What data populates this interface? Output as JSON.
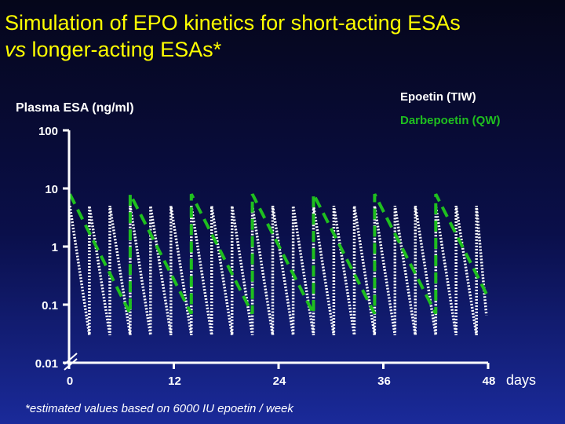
{
  "title": {
    "line1": "Simulation of EPO kinetics for short-acting ESAs",
    "line2_italic": "vs",
    "line2_rest": " longer-acting ESAs*"
  },
  "footnote": "*estimated values based on 6000 IU epoetin / week",
  "colors": {
    "epoetin": "#ffffff",
    "darbepoetin": "#1fbf1f",
    "title": "#ffff00",
    "axis": "#ffffff"
  },
  "chart_data": {
    "type": "line",
    "ylabel": "Plasma ESA (ng/ml)",
    "xlabel": "days",
    "yscale": "log",
    "ylim": [
      0.01,
      100
    ],
    "xlim": [
      0,
      48
    ],
    "y_ticks": [
      {
        "value": 100,
        "label": "100"
      },
      {
        "value": 10,
        "label": "10"
      },
      {
        "value": 1,
        "label": "1"
      },
      {
        "value": 0.1,
        "label": "0.1"
      },
      {
        "value": 0.01,
        "label": "0.01"
      }
    ],
    "x_ticks": [
      {
        "value": 0,
        "label": "0"
      },
      {
        "value": 12,
        "label": "12"
      },
      {
        "value": 24,
        "label": "24"
      },
      {
        "value": 36,
        "label": "36"
      },
      {
        "value": 48,
        "label": "48"
      }
    ],
    "legend_position": "top-right",
    "series": [
      {
        "name": "Epoetin (TIW)",
        "style": "dotted",
        "peak": 5,
        "trough": 0.03,
        "dose_days": [
          0,
          2.33,
          4.67,
          7,
          9.33,
          11.67,
          14,
          16.33,
          18.67,
          21,
          23.33,
          25.67,
          28,
          30.33,
          32.67,
          35,
          37.33,
          39.67,
          42,
          44.33,
          46.67
        ]
      },
      {
        "name": "Darbepoetin (QW)",
        "style": "dashed",
        "peak": 8,
        "trough": 0.07,
        "dose_days": [
          0,
          7,
          14,
          21,
          28,
          35,
          42
        ]
      }
    ]
  }
}
